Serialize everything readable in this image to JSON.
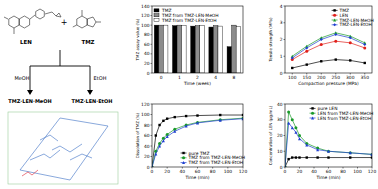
{
  "chart_data": [
    {
      "type": "bar",
      "x_label": "Time (week)",
      "y_label": "TMZ assay value (%)",
      "categories": [
        "0",
        "1",
        "2",
        "4",
        "8"
      ],
      "series": [
        {
          "name": "TMZ",
          "color": "#000000",
          "values": [
            100,
            99,
            98,
            96,
            55
          ]
        },
        {
          "name": "TMZ from TMZ-LEN·MeOH",
          "color": "#8c8c8c",
          "values": [
            100,
            100,
            99,
            99,
            100
          ]
        },
        {
          "name": "TMZ from TMZ-LEN·EtOH",
          "color": "#ffffff",
          "values": [
            100,
            99,
            99,
            98,
            97
          ]
        }
      ],
      "ylim": [
        0,
        140
      ],
      "yticks": [
        0,
        20,
        40,
        60,
        80,
        100,
        120,
        140
      ],
      "legend": "upper left",
      "grid": false
    },
    {
      "type": "line",
      "x_label": "Compaction pressure (MPa)",
      "y_label": "Tensile strength (MPa)",
      "x": [
        100,
        150,
        200,
        250,
        300,
        350
      ],
      "series": [
        {
          "name": "TMZ",
          "color": "#000000",
          "marker": "square",
          "values": [
            0.3,
            0.5,
            0.7,
            0.8,
            0.75,
            0.6
          ]
        },
        {
          "name": "LEN",
          "color": "#e0201b",
          "marker": "circle",
          "values": [
            0.8,
            1.3,
            1.7,
            1.9,
            1.8,
            1.5
          ]
        },
        {
          "name": "TMZ-LEN·MeOH",
          "color": "#1a9a2a",
          "marker": "triangle",
          "values": [
            1.0,
            1.6,
            2.1,
            2.4,
            2.2,
            1.8
          ]
        },
        {
          "name": "TMZ-LEN·EtOH",
          "color": "#1f3fd0",
          "marker": "diamond",
          "values": [
            0.9,
            1.5,
            2.0,
            2.3,
            2.1,
            1.7
          ]
        }
      ],
      "xlim": [
        75,
        375
      ],
      "xticks": [
        100,
        150,
        200,
        250,
        300,
        350
      ],
      "ylim": [
        0,
        4
      ],
      "yticks": [
        0,
        1,
        2,
        3,
        4
      ],
      "legend": "upper right",
      "grid": false
    },
    {
      "type": "line",
      "x_label": "Time (min)",
      "y_label": "Dissolution of TMZ (%)",
      "x": [
        0,
        5,
        10,
        15,
        20,
        30,
        45,
        60,
        90,
        120
      ],
      "series": [
        {
          "name": "pure TMZ",
          "color": "#000000",
          "marker": "square",
          "values": [
            0,
            60,
            80,
            88,
            92,
            95,
            97,
            98,
            99,
            99
          ]
        },
        {
          "name": "TMZ from TMZ-LEN·MeOH",
          "color": "#1a9a2a",
          "marker": "circle",
          "values": [
            0,
            30,
            45,
            55,
            62,
            72,
            80,
            85,
            90,
            93
          ]
        },
        {
          "name": "TMZ from TMZ-LEN·EtOH",
          "color": "#1f3fd0",
          "marker": "triangle",
          "values": [
            0,
            25,
            40,
            50,
            58,
            68,
            78,
            84,
            89,
            92
          ]
        }
      ],
      "xlim": [
        0,
        120
      ],
      "xticks": [
        0,
        20,
        40,
        60,
        80,
        100,
        120
      ],
      "ylim": [
        0,
        120
      ],
      "yticks": [
        0,
        20,
        40,
        60,
        80,
        100,
        120
      ],
      "legend": "lower right",
      "grid": false
    },
    {
      "type": "line",
      "x_label": "Time (min)",
      "y_label": "Concentration of LEN (μg/mL)",
      "x": [
        0,
        5,
        10,
        15,
        20,
        30,
        45,
        60,
        90,
        120
      ],
      "series": [
        {
          "name": "pure LEN",
          "color": "#000000",
          "marker": "square",
          "values": [
            0,
            5,
            6,
            6,
            6,
            6,
            6,
            6,
            6,
            6
          ]
        },
        {
          "name": "LEN from TMZ-LEN·MeOH",
          "color": "#1a9a2a",
          "marker": "circle",
          "values": [
            0,
            35,
            30,
            25,
            20,
            15,
            12,
            10,
            9,
            8
          ]
        },
        {
          "name": "LEN from TMZ-LEN·EtOH",
          "color": "#1f3fd0",
          "marker": "triangle",
          "values": [
            0,
            28,
            25,
            22,
            18,
            14,
            11,
            10,
            9,
            8
          ]
        }
      ],
      "xlim": [
        0,
        120
      ],
      "xticks": [
        0,
        20,
        40,
        60,
        80,
        100,
        120
      ],
      "ylim": [
        0,
        40
      ],
      "yticks": [
        0,
        10,
        20,
        30,
        40
      ],
      "legend": "upper right",
      "grid": false
    }
  ],
  "diagram": {
    "reactants": [
      "LEN",
      "TMZ"
    ],
    "plus": "+",
    "solvents": [
      "MeOH",
      "EtOH"
    ],
    "products": [
      "TMZ·LEN·MeOH",
      "TMZ·LEN·EtOH"
    ]
  }
}
